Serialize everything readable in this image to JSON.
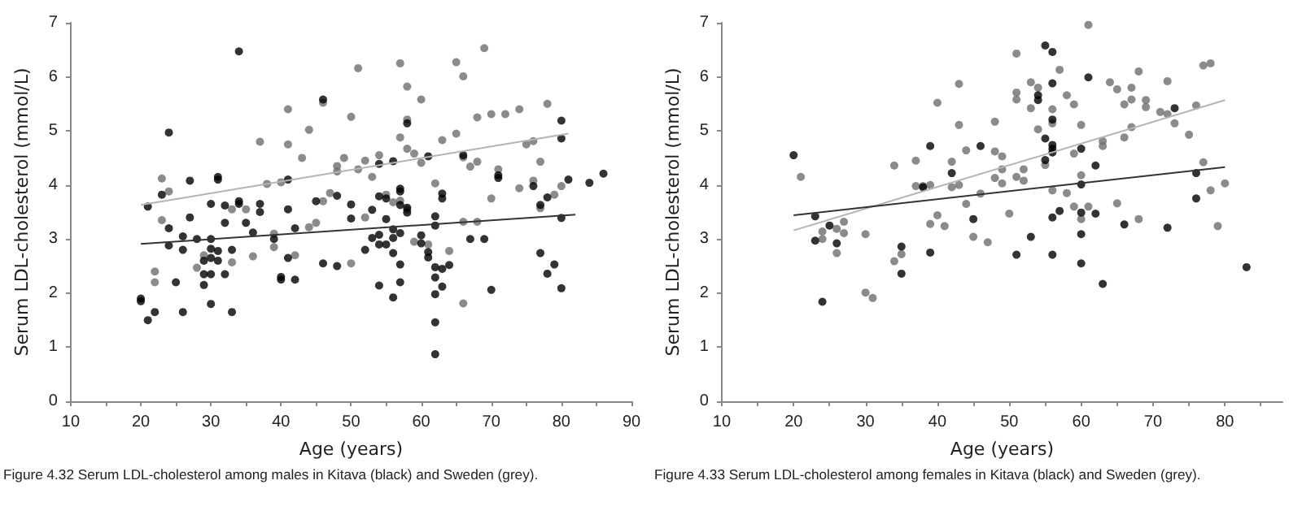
{
  "chart_data": [
    {
      "type": "scatter",
      "xlabel": "Age (years)",
      "ylabel": "Serum LDL-cholesterol (mmol/L)",
      "xlim": [
        10,
        90
      ],
      "xticks": [
        10,
        {
          "value": 15,
          "label": null
        },
        20,
        {
          "value": 25,
          "label": null
        },
        30,
        {
          "value": 35,
          "label": null
        },
        40,
        {
          "value": 45,
          "label": null
        },
        50,
        {
          "value": 55,
          "label": null
        },
        60,
        {
          "value": 65,
          "label": null
        },
        70,
        {
          "value": 75,
          "label": null
        },
        80,
        {
          "value": 85,
          "label": null
        },
        90
      ],
      "ylim": [
        0,
        7
      ],
      "yticks": [
        0,
        1,
        2,
        3,
        4,
        5,
        6,
        7
      ],
      "grid": false,
      "annotations": [
        "Figure 4.32 Serum LDL-cholesterol among males in Kitava (black) and Sweden (grey)."
      ],
      "series": [
        {
          "marker": "circle",
          "color": "#6e6e6e",
          "x": [
            22,
            22,
            23,
            23,
            24,
            28,
            29,
            33,
            33,
            35,
            36,
            37,
            38,
            39,
            39,
            40,
            41,
            41,
            42,
            43,
            44,
            44,
            45,
            46,
            46,
            47,
            48,
            48,
            49,
            50,
            50,
            51,
            51,
            52,
            52,
            53,
            54,
            55,
            56,
            57,
            57,
            57,
            58,
            58,
            58,
            58,
            59,
            59,
            60,
            60,
            61,
            62,
            63,
            64,
            65,
            65,
            66,
            66,
            66,
            66,
            67,
            68,
            68,
            68,
            69,
            70,
            70,
            71,
            72,
            74,
            74,
            75,
            76,
            76,
            77,
            77,
            78,
            79,
            80
          ],
          "values": [
            2.4,
            2.2,
            4.12,
            3.35,
            3.88,
            2.47,
            2.7,
            2.57,
            3.55,
            3.55,
            2.68,
            4.8,
            4.02,
            3.1,
            2.85,
            4.05,
            5.4,
            4.75,
            2.7,
            4.5,
            5.02,
            3.22,
            3.3,
            5.52,
            3.7,
            3.85,
            4.35,
            4.25,
            4.5,
            5.26,
            2.55,
            4.29,
            6.16,
            4.45,
            3.4,
            4.15,
            4.55,
            3.82,
            3.68,
            6.25,
            4.88,
            3.71,
            5.82,
            5.21,
            4.67,
            3.54,
            4.58,
            2.95,
            5.58,
            4.41,
            2.9,
            4.03,
            4.83,
            2.78,
            6.27,
            4.95,
            6.01,
            4.51,
            3.32,
            1.81,
            4.34,
            5.25,
            4.43,
            3.32,
            6.53,
            5.31,
            3.75,
            4.29,
            5.31,
            5.4,
            3.94,
            4.75,
            4.81,
            4.08,
            4.43,
            3.57,
            5.5,
            3.82,
            3.98
          ]
        },
        {
          "marker": "circle",
          "color": "#000000",
          "x": [
            20,
            20,
            21,
            21,
            22,
            23,
            24,
            24,
            24,
            25,
            26,
            26,
            26,
            27,
            27,
            28,
            29,
            29,
            29,
            30,
            30,
            30,
            30,
            30,
            30,
            31,
            31,
            31,
            31,
            32,
            32,
            32,
            33,
            33,
            34,
            34,
            34,
            35,
            36,
            37,
            37,
            39,
            40,
            40,
            41,
            41,
            41,
            42,
            42,
            45,
            46,
            46,
            48,
            48,
            50,
            50,
            52,
            53,
            53,
            54,
            54,
            54,
            54,
            54,
            55,
            55,
            55,
            56,
            56,
            56,
            56,
            56,
            57,
            57,
            57,
            57,
            57,
            57,
            58,
            58,
            58,
            60,
            60,
            61,
            61,
            61,
            62,
            62,
            62,
            62,
            62,
            62,
            62,
            63,
            63,
            63,
            63,
            64,
            66,
            67,
            69,
            70,
            71,
            71,
            76,
            77,
            77,
            78,
            78,
            79,
            80,
            80,
            80,
            80,
            81,
            84,
            86
          ],
          "values": [
            1.85,
            1.9,
            1.5,
            3.6,
            1.65,
            3.82,
            4.97,
            3.2,
            2.88,
            2.2,
            1.65,
            3.05,
            2.8,
            4.08,
            3.4,
            3.0,
            2.6,
            2.35,
            2.15,
            3.65,
            3.0,
            2.82,
            2.65,
            2.35,
            1.8,
            4.15,
            4.1,
            2.78,
            2.6,
            3.62,
            3.3,
            2.35,
            2.8,
            1.65,
            6.47,
            3.65,
            3.7,
            3.3,
            3.12,
            3.65,
            3.5,
            3.0,
            2.3,
            2.25,
            4.1,
            3.55,
            2.65,
            3.2,
            2.25,
            3.7,
            5.58,
            2.55,
            2.5,
            3.8,
            3.64,
            3.38,
            2.8,
            3.54,
            3.02,
            4.39,
            3.79,
            3.08,
            2.9,
            2.14,
            3.75,
            3.37,
            2.9,
            4.44,
            3.18,
            3.02,
            2.74,
            1.92,
            3.93,
            3.88,
            3.63,
            3.11,
            2.53,
            2.2,
            5.14,
            3.58,
            3.49,
            3.07,
            2.92,
            4.53,
            2.76,
            2.66,
            3.42,
            3.25,
            2.48,
            2.29,
            1.98,
            1.46,
            0.87,
            3.84,
            3.75,
            2.45,
            2.12,
            2.52,
            4.55,
            3.0,
            3.0,
            2.06,
            4.18,
            4.13,
            3.98,
            3.63,
            2.74,
            3.77,
            2.36,
            2.53,
            5.19,
            4.86,
            3.39,
            2.09,
            4.1,
            4.04,
            4.21
          ]
        },
        {
          "type": "line",
          "color": "#b4b4b4",
          "x": [
            20,
            81
          ],
          "values": [
            3.63,
            4.95
          ]
        },
        {
          "type": "line",
          "color": "#333333",
          "x": [
            20,
            82
          ],
          "values": [
            2.91,
            3.45
          ]
        }
      ]
    },
    {
      "type": "scatter",
      "xlabel": "Age (years)",
      "ylabel": "Serum LDL-cholesterol (mmol/L)",
      "xlim": [
        10,
        88
      ],
      "xticks": [
        10,
        {
          "value": 15,
          "label": null
        },
        20,
        {
          "value": 25,
          "label": null
        },
        30,
        {
          "value": 35,
          "label": null
        },
        40,
        {
          "value": 45,
          "label": null
        },
        50,
        {
          "value": 55,
          "label": null
        },
        60,
        {
          "value": 65,
          "label": null
        },
        70,
        {
          "value": 75,
          "label": null
        },
        80,
        {
          "value": 85,
          "label": null
        }
      ],
      "ylim": [
        0,
        7
      ],
      "yticks": [
        0,
        1,
        2,
        3,
        4,
        5,
        6,
        7
      ],
      "grid": false,
      "annotations": [
        "Figure 4.33 Serum LDL-cholesterol among females in Kitava (black) and Sweden (grey)."
      ],
      "series": [
        {
          "marker": "circle",
          "color": "#6e6e6e",
          "x": [
            21,
            24,
            24,
            26,
            26,
            27,
            27,
            30,
            30,
            31,
            34,
            34,
            35,
            37,
            37,
            38,
            39,
            39,
            40,
            40,
            41,
            42,
            42,
            43,
            43,
            43,
            44,
            44,
            45,
            46,
            47,
            48,
            48,
            48,
            49,
            49,
            49,
            50,
            51,
            51,
            51,
            51,
            52,
            52,
            53,
            53,
            54,
            54,
            55,
            56,
            56,
            56,
            57,
            58,
            58,
            59,
            59,
            59,
            60,
            60,
            60,
            61,
            61,
            63,
            63,
            64,
            65,
            65,
            66,
            66,
            67,
            67,
            67,
            68,
            68,
            69,
            69,
            71,
            72,
            72,
            73,
            75,
            76,
            77,
            78,
            77,
            78,
            79,
            80
          ],
          "values": [
            4.15,
            3.14,
            3.0,
            2.74,
            3.19,
            3.32,
            3.11,
            3.09,
            2.01,
            1.91,
            4.36,
            2.59,
            2.72,
            4.45,
            3.98,
            3.98,
            4.0,
            3.28,
            5.52,
            3.44,
            3.24,
            4.43,
            3.96,
            5.87,
            5.11,
            4.0,
            4.64,
            3.65,
            3.04,
            3.84,
            2.94,
            5.17,
            4.62,
            4.13,
            4.53,
            4.29,
            4.03,
            3.47,
            6.43,
            5.71,
            5.58,
            4.15,
            4.29,
            4.08,
            5.9,
            5.42,
            5.8,
            5.03,
            4.37,
            5.4,
            5.14,
            3.9,
            6.13,
            5.66,
            3.85,
            5.49,
            4.58,
            3.6,
            5.11,
            4.18,
            3.37,
            6.96,
            3.6,
            4.81,
            4.72,
            5.9,
            5.77,
            3.66,
            5.49,
            4.88,
            5.8,
            5.58,
            5.07,
            6.1,
            3.37,
            5.57,
            5.44,
            5.35,
            5.31,
            5.92,
            5.14,
            4.93,
            5.47,
            6.21,
            6.25,
            4.42,
            3.9,
            3.24,
            4.03
          ]
        },
        {
          "marker": "circle",
          "color": "#000000",
          "x": [
            20,
            23,
            23,
            24,
            25,
            26,
            35,
            35,
            38,
            39,
            39,
            42,
            45,
            46,
            51,
            53,
            54,
            54,
            55,
            55,
            55,
            56,
            56,
            56,
            56,
            56,
            56,
            56,
            56,
            57,
            60,
            60,
            60,
            60,
            60,
            61,
            62,
            62,
            63,
            66,
            72,
            73,
            76,
            76,
            83
          ],
          "values": [
            4.55,
            3.42,
            2.97,
            1.84,
            3.25,
            2.92,
            2.86,
            2.36,
            3.96,
            4.72,
            2.75,
            4.22,
            3.37,
            4.72,
            2.71,
            3.04,
            5.66,
            5.57,
            6.58,
            4.86,
            4.46,
            6.46,
            5.88,
            5.21,
            4.74,
            4.67,
            4.6,
            3.4,
            2.71,
            3.52,
            4.67,
            4.01,
            3.49,
            3.09,
            2.55,
            5.99,
            4.36,
            3.47,
            2.17,
            3.27,
            3.21,
            5.42,
            4.22,
            3.75,
            2.48
          ]
        },
        {
          "type": "line",
          "color": "#b4b4b4",
          "x": [
            20,
            80
          ],
          "values": [
            3.16,
            5.57
          ]
        },
        {
          "type": "line",
          "color": "#333333",
          "x": [
            20,
            80
          ],
          "values": [
            3.44,
            4.33
          ]
        }
      ]
    }
  ]
}
